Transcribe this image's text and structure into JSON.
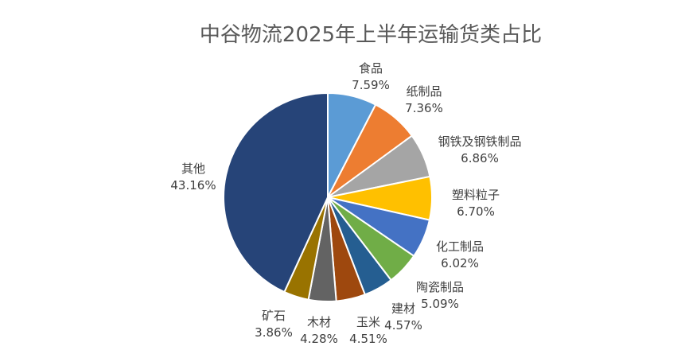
{
  "chart_data": {
    "type": "pie",
    "title": "中谷物流2025年上半年运输货类占比",
    "start_angle_deg": 0,
    "direction": "clockwise",
    "slices": [
      {
        "name": "食品",
        "value": 7.59,
        "label": "7.59%",
        "color": "#5B9BD5"
      },
      {
        "name": "纸制品",
        "value": 7.36,
        "label": "7.36%",
        "color": "#ED7D31"
      },
      {
        "name": "钢铁及钢铁制品",
        "value": 6.86,
        "label": "6.86%",
        "color": "#A5A5A5"
      },
      {
        "name": "塑料粒子",
        "value": 6.7,
        "label": "6.70%",
        "color": "#FFC000"
      },
      {
        "name": "化工制品",
        "value": 6.02,
        "label": "6.02%",
        "color": "#4472C4"
      },
      {
        "name": "陶瓷制品",
        "value": 5.09,
        "label": "5.09%",
        "color": "#70AD47"
      },
      {
        "name": "建材",
        "value": 4.57,
        "label": "4.57%",
        "color": "#255E91"
      },
      {
        "name": "玉米",
        "value": 4.51,
        "label": "4.51%",
        "color": "#9E480E"
      },
      {
        "name": "木材",
        "value": 4.28,
        "label": "4.28%",
        "color": "#636363"
      },
      {
        "name": "矿石",
        "value": 3.86,
        "label": "3.86%",
        "color": "#997300"
      },
      {
        "name": "其他",
        "value": 43.16,
        "label": "43.16%",
        "color": "#264478"
      }
    ]
  }
}
